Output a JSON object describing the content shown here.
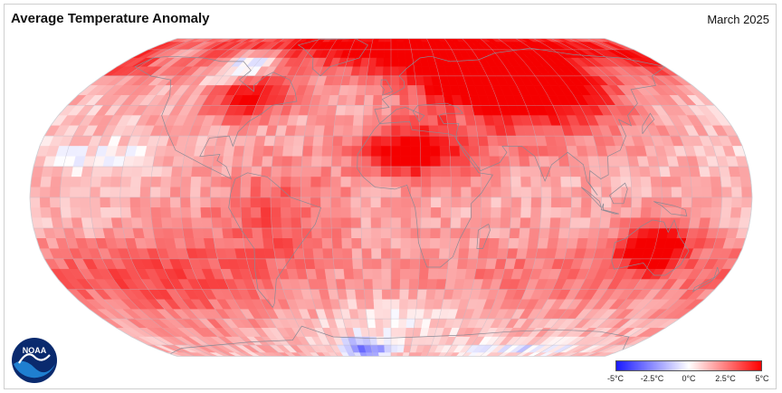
{
  "header": {
    "title": "Average Temperature Anomaly",
    "date": "March 2025"
  },
  "logo": {
    "text": "NOAA",
    "colors": {
      "dark": "#0a2a6e",
      "light": "#1f7fd0"
    }
  },
  "legend": {
    "ticks": [
      "-5°C",
      "-2.5°C",
      "0°C",
      "2.5°C",
      "5°C"
    ],
    "colors": {
      "cold": "#1a1aff",
      "neutral": "#ffffff",
      "warm": "#ff0000"
    }
  },
  "map": {
    "projection": "robinson",
    "anomaly_range_c": [
      -5,
      5
    ],
    "grid_cells": {
      "lon": 36,
      "lat": 18
    }
  }
}
